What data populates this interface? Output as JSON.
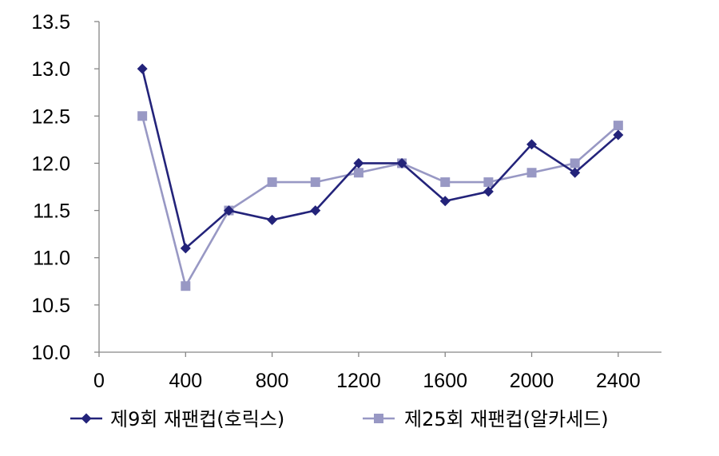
{
  "chart_data": {
    "type": "line",
    "title": "",
    "xlabel": "",
    "ylabel": "",
    "xlim": [
      0,
      2600
    ],
    "ylim": [
      10.0,
      13.5
    ],
    "x_ticks": [
      0,
      400,
      800,
      1200,
      1600,
      2000,
      2400
    ],
    "x_tick_labels": [
      "0",
      "400",
      "800",
      "1200",
      "1600",
      "2000",
      "2400"
    ],
    "y_ticks": [
      10.0,
      10.5,
      11.0,
      11.5,
      12.0,
      12.5,
      13.0,
      13.5
    ],
    "y_tick_labels": [
      "10.0",
      "10.5",
      "11.0",
      "11.5",
      "12.0",
      "12.5",
      "13.0",
      "13.5"
    ],
    "grid": false,
    "legend_position": "bottom",
    "x": [
      200,
      400,
      600,
      800,
      1000,
      1200,
      1400,
      1600,
      1800,
      2000,
      2200,
      2400
    ],
    "series": [
      {
        "name": "제9회 재팬컵(호릭스)",
        "color": "#23237a",
        "marker": "diamond",
        "values": [
          13.0,
          11.1,
          11.5,
          11.4,
          11.5,
          12.0,
          12.0,
          11.6,
          11.7,
          12.2,
          11.9,
          12.3
        ]
      },
      {
        "name": "제25회 재팬컵(알카세드)",
        "color": "#9898c4",
        "marker": "square",
        "values": [
          12.5,
          10.7,
          11.5,
          11.8,
          11.8,
          11.9,
          12.0,
          11.8,
          11.8,
          11.9,
          12.0,
          12.4
        ]
      }
    ]
  }
}
